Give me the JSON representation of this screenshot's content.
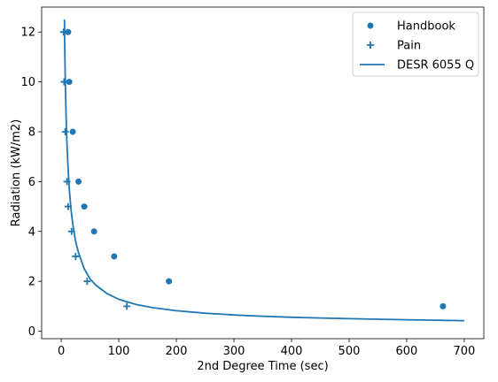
{
  "chart_data": {
    "type": "scatter",
    "title": "",
    "xlabel": "2nd Degree Time (sec)",
    "ylabel": "Radiation (kW/m2)",
    "xlim": [
      -34,
      734
    ],
    "ylim": [
      -0.3,
      13
    ],
    "xticks": [
      0,
      100,
      200,
      300,
      400,
      500,
      600,
      700
    ],
    "yticks": [
      0,
      2,
      4,
      6,
      8,
      10,
      12
    ],
    "grid": false,
    "legend_position": "top-right",
    "color": "#1f77b4",
    "series": [
      {
        "name": "Handbook",
        "kind": "scatter",
        "marker": "circle",
        "x": [
          12,
          14,
          20,
          30,
          40,
          57,
          92,
          187,
          663
        ],
        "y": [
          12,
          10,
          8,
          6,
          5,
          4,
          3,
          2,
          1
        ]
      },
      {
        "name": "Pain",
        "kind": "scatter",
        "marker": "plus",
        "x": [
          4,
          5,
          7,
          10,
          12,
          18,
          25,
          45,
          114
        ],
        "y": [
          12,
          10,
          8,
          6,
          5,
          4,
          3,
          2,
          1
        ]
      },
      {
        "name": "DESR 6055 Q",
        "kind": "line",
        "marker": "none",
        "x": [
          5.5,
          6,
          7,
          8,
          9,
          10,
          12,
          14,
          17,
          20,
          25,
          30,
          40,
          50,
          60,
          80,
          100,
          130,
          160,
          200,
          250,
          300,
          350,
          400,
          450,
          500,
          550,
          600,
          650,
          700
        ],
        "y": [
          12.5,
          11.6,
          10.2,
          9.1,
          8.2,
          7.5,
          6.5,
          5.7,
          4.9,
          4.3,
          3.6,
          3.15,
          2.5,
          2.1,
          1.85,
          1.5,
          1.28,
          1.07,
          0.94,
          0.82,
          0.72,
          0.65,
          0.6,
          0.56,
          0.53,
          0.5,
          0.48,
          0.46,
          0.44,
          0.42
        ]
      }
    ]
  }
}
